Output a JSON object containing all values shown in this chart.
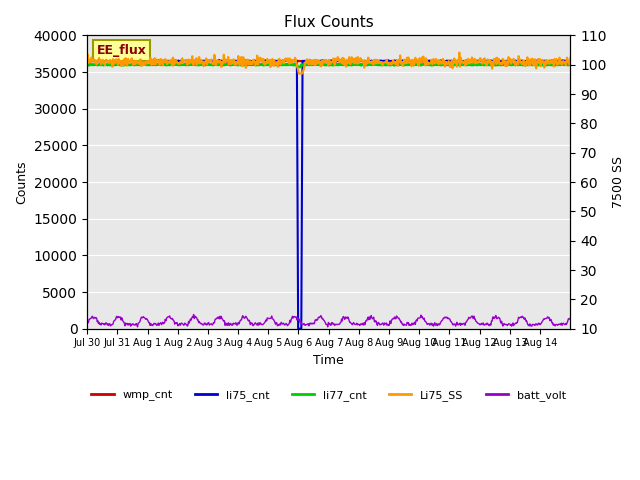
{
  "title": "Flux Counts",
  "ylabel_left": "Counts",
  "ylabel_right": "7500 SS",
  "xlabel": "Time",
  "ylim_left": [
    0,
    40000
  ],
  "ylim_right": [
    10,
    110
  ],
  "background_color": "#e8e8e8",
  "annotation_text": "EE_flux",
  "annotation_bg": "#ffff99",
  "annotation_border": "#999900",
  "xtick_labels": [
    "Jul 30",
    "Jul 31",
    "Aug 1",
    "Aug 2",
    "Aug 3",
    "Aug 4",
    "Aug 5",
    "Aug 6",
    "Aug 7",
    "Aug 8",
    "Aug 9",
    "Aug 10",
    "Aug 11",
    "Aug 12",
    "Aug 13",
    "Aug 14"
  ],
  "yticks_left": [
    0,
    5000,
    10000,
    15000,
    20000,
    25000,
    30000,
    35000,
    40000
  ],
  "yticks_right": [
    10,
    20,
    30,
    40,
    50,
    60,
    70,
    80,
    90,
    100,
    110
  ],
  "series": {
    "wmp_cnt": {
      "color": "#cc0000",
      "linewidth": 1.5
    },
    "li75_cnt": {
      "color": "#0000cc",
      "linewidth": 1.5
    },
    "li77_cnt": {
      "color": "#00cc00",
      "linewidth": 2.0
    },
    "Li75_SS": {
      "color": "#ff9900",
      "linewidth": 1.5
    },
    "batt_volt": {
      "color": "#9900cc",
      "linewidth": 1.0
    }
  }
}
